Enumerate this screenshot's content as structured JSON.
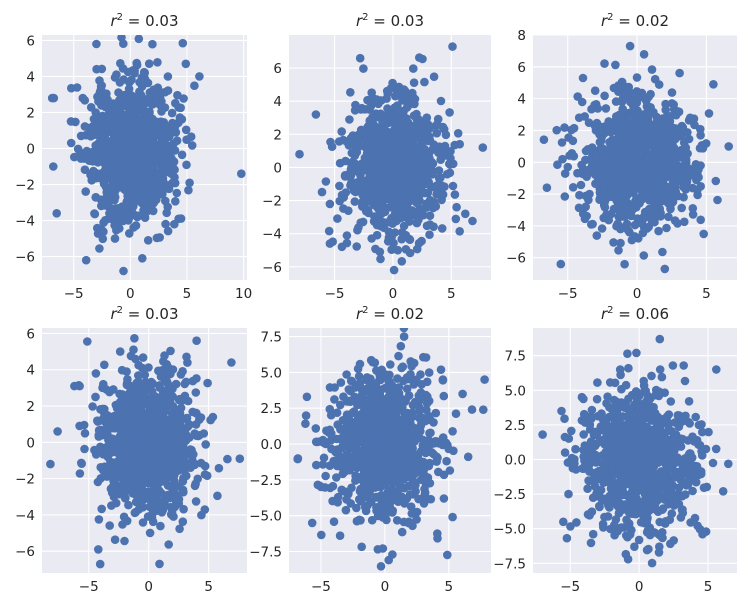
{
  "figure": {
    "background": "#ffffff",
    "axes_facecolor": "#eaeaf2",
    "grid_color": "#ffffff",
    "marker_color": "#4c72b0"
  },
  "chart_data": [
    {
      "type": "scatter",
      "title": "r^2 = 0.03",
      "title_var": "r",
      "title_exp": "2",
      "title_rest": " = 0.03",
      "grid": true,
      "xlim": [
        -7.8,
        10.3
      ],
      "ylim": [
        -7.3,
        6.3
      ],
      "xticks": [
        -5,
        0,
        5,
        10
      ],
      "yticks": [
        -6,
        -4,
        -2,
        0,
        2,
        4,
        6
      ],
      "point_count": 1000,
      "seed": 11,
      "sx": 1.95,
      "sy": 1.95,
      "outliers": [
        [
          9.8,
          -1.4
        ],
        [
          -6.9,
          2.8
        ],
        [
          -6.8,
          -1.0
        ],
        [
          -3.0,
          5.8
        ],
        [
          -0.6,
          -6.8
        ],
        [
          6.1,
          4.0
        ],
        [
          -3.9,
          -6.2
        ],
        [
          4.9,
          4.7
        ],
        [
          -6.5,
          -3.6
        ]
      ]
    },
    {
      "type": "scatter",
      "title": "r^2 = 0.03",
      "title_var": "r",
      "title_exp": "2",
      "title_rest": " = 0.03",
      "grid": true,
      "xlim": [
        -8.9,
        8.4
      ],
      "ylim": [
        -6.8,
        8.0
      ],
      "xticks": [
        -5,
        0,
        5
      ],
      "yticks": [
        -6,
        -4,
        -2,
        0,
        2,
        4,
        6
      ],
      "point_count": 1000,
      "seed": 23,
      "sx": 2.0,
      "sy": 2.0,
      "outliers": [
        [
          -8.0,
          0.8
        ],
        [
          5.1,
          7.3
        ],
        [
          -2.8,
          6.6
        ],
        [
          0.1,
          -6.2
        ],
        [
          7.7,
          1.2
        ],
        [
          -5.4,
          -4.6
        ],
        [
          6.2,
          -2.8
        ],
        [
          -6.6,
          3.2
        ]
      ]
    },
    {
      "type": "scatter",
      "title": "r^2 = 0.02",
      "title_var": "r",
      "title_exp": "2",
      "title_rest": " = 0.02",
      "grid": true,
      "xlim": [
        -7.5,
        7.2
      ],
      "ylim": [
        -7.4,
        8.0
      ],
      "xticks": [
        -5,
        0,
        5
      ],
      "yticks": [
        -6,
        -4,
        -2,
        0,
        2,
        4,
        6,
        8
      ],
      "point_count": 1000,
      "seed": 37,
      "sx": 2.0,
      "sy": 2.0,
      "outliers": [
        [
          -0.5,
          7.3
        ],
        [
          -6.5,
          -1.6
        ],
        [
          -5.5,
          -6.4
        ],
        [
          2.0,
          -6.7
        ],
        [
          6.6,
          1.0
        ],
        [
          -3.9,
          5.3
        ],
        [
          5.5,
          4.9
        ],
        [
          4.8,
          -4.5
        ]
      ]
    },
    {
      "type": "scatter",
      "title": "r^2 = 0.03",
      "title_var": "r",
      "title_exp": "2",
      "title_rest": " = 0.03",
      "grid": true,
      "xlim": [
        -8.9,
        8.2
      ],
      "ylim": [
        -7.2,
        6.3
      ],
      "xticks": [
        -5,
        0,
        5
      ],
      "yticks": [
        -6,
        -4,
        -2,
        0,
        2,
        4,
        6
      ],
      "point_count": 1000,
      "seed": 41,
      "sx": 2.0,
      "sy": 2.0,
      "outliers": [
        [
          -8.2,
          -1.2
        ],
        [
          0.9,
          -6.7
        ],
        [
          4.0,
          5.6
        ],
        [
          7.6,
          -0.9
        ],
        [
          -4.2,
          -5.9
        ],
        [
          -7.6,
          0.6
        ],
        [
          6.9,
          4.4
        ],
        [
          -4.4,
          3.8
        ]
      ]
    },
    {
      "type": "scatter",
      "title": "r^2 = 0.02",
      "title_var": "r",
      "title_exp": "2",
      "title_rest": " = 0.02",
      "grid": true,
      "xlim": [
        -7.5,
        8.3
      ],
      "ylim": [
        -9.0,
        8.1
      ],
      "xticks": [
        -5,
        0,
        5
      ],
      "yticks": [
        -7.5,
        -5.0,
        -2.5,
        0.0,
        2.5,
        5.0,
        7.5
      ],
      "tick_decimals": 1,
      "point_count": 1000,
      "seed": 53,
      "sx": 2.0,
      "sy": 2.5,
      "outliers": [
        [
          0.3,
          -8.1
        ],
        [
          1.5,
          7.5
        ],
        [
          -6.8,
          -1.0
        ],
        [
          7.7,
          2.4
        ],
        [
          -6.1,
          3.3
        ],
        [
          5.3,
          -5.1
        ],
        [
          -3.5,
          -6.4
        ],
        [
          7.8,
          4.5
        ]
      ]
    },
    {
      "type": "scatter",
      "title": "r^2 = 0.06",
      "title_var": "r",
      "title_exp": "2",
      "title_rest": " = 0.06",
      "grid": true,
      "xlim": [
        -7.7,
        7.1
      ],
      "ylim": [
        -8.2,
        9.5
      ],
      "xticks": [
        -5,
        0,
        5
      ],
      "yticks": [
        -7.5,
        -5.0,
        -2.5,
        0.0,
        2.5,
        5.0,
        7.5
      ],
      "tick_decimals": 1,
      "point_count": 1000,
      "seed": 67,
      "sx": 2.1,
      "sy": 2.4,
      "outliers": [
        [
          1.5,
          8.7
        ],
        [
          -0.2,
          7.7
        ],
        [
          -0.8,
          -7.2
        ],
        [
          -7.0,
          1.8
        ],
        [
          5.6,
          6.5
        ],
        [
          -5.5,
          -4.5
        ],
        [
          4.6,
          -5.4
        ],
        [
          6.1,
          -2.3
        ]
      ]
    }
  ]
}
